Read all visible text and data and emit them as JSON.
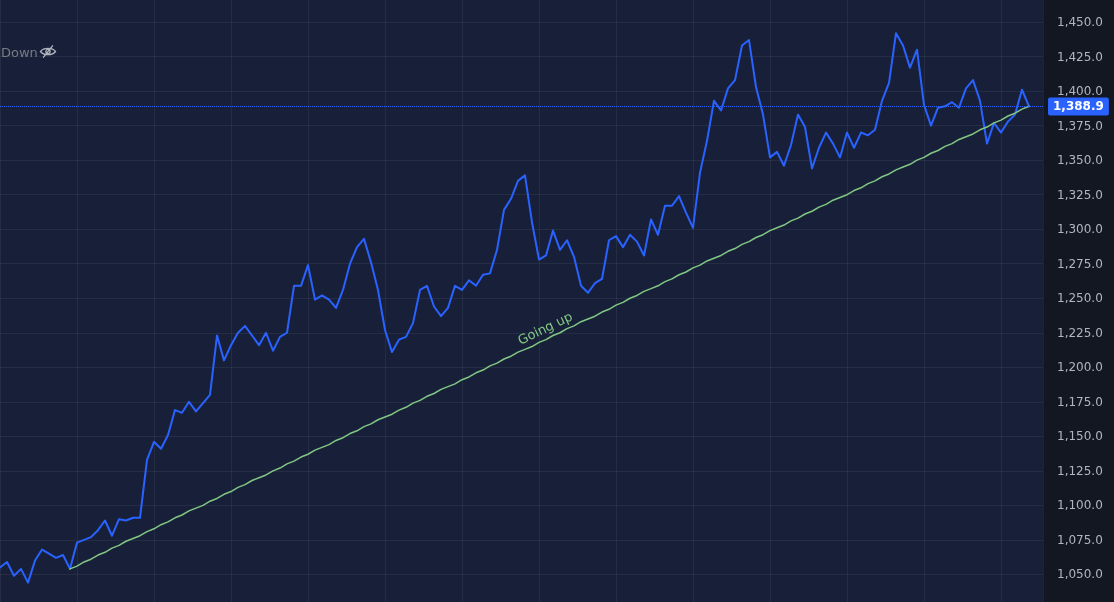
{
  "chart_data": {
    "type": "line",
    "categories": [
      null,
      null,
      null,
      null,
      null,
      null,
      null,
      null,
      null,
      null,
      null,
      null,
      null,
      null,
      null,
      null,
      null,
      null,
      null,
      null,
      null,
      null,
      null,
      null,
      null,
      null,
      null,
      null,
      null,
      null,
      null,
      null,
      null,
      null,
      null,
      null,
      null,
      null,
      null,
      null,
      null,
      null,
      null,
      null,
      null,
      null,
      null,
      null,
      null,
      null,
      null,
      null,
      null,
      null,
      null,
      null,
      null,
      null,
      null,
      null,
      null,
      null,
      null,
      null,
      null,
      null,
      null,
      null,
      null,
      null,
      null,
      null,
      null,
      null,
      null,
      null,
      null,
      null,
      null,
      null,
      null,
      null,
      null,
      null,
      null,
      null,
      null,
      null,
      null,
      null,
      null,
      null,
      null,
      null,
      null,
      null,
      null,
      null,
      null,
      null,
      null,
      null,
      null,
      null,
      null,
      null,
      null,
      null,
      null,
      null,
      null,
      null,
      null,
      null,
      null,
      null,
      null,
      null,
      null,
      null,
      null,
      null,
      null,
      null,
      null,
      null,
      null,
      null,
      null,
      null,
      null,
      null,
      null,
      null,
      null,
      null,
      null,
      null,
      null,
      null,
      null,
      null,
      null,
      null,
      null,
      null,
      null,
      null,
      null,
      null
    ],
    "series": [
      {
        "color": "#2962ff",
        "values": [
          1055,
          1059,
          1049,
          1054,
          1044,
          1060,
          1068,
          1065,
          1062,
          1064,
          1054,
          1073,
          1075,
          1077,
          1082,
          1089,
          1078,
          1090,
          1089,
          1091,
          1091,
          1133,
          1146,
          1141,
          1151,
          1169,
          1167,
          1175,
          1168,
          1174,
          1180,
          1223,
          1205,
          1216,
          1225,
          1230,
          1223,
          1216,
          1225,
          1212,
          1222,
          1225,
          1259,
          1259,
          1274,
          1249,
          1252,
          1249,
          1243,
          1256,
          1275,
          1287,
          1293,
          1276,
          1256,
          1227,
          1211,
          1220,
          1222,
          1232,
          1256,
          1259,
          1244,
          1237,
          1243,
          1259,
          1256,
          1263,
          1259,
          1267,
          1268,
          1285,
          1314,
          1322,
          1335,
          1339,
          1305,
          1278,
          1281,
          1299,
          1285,
          1292,
          1280,
          1259,
          1254,
          1261,
          1264,
          1292,
          1295,
          1287,
          1296,
          1291,
          1281,
          1307,
          1296,
          1317,
          1317,
          1324,
          1312,
          1301,
          1341,
          1364,
          1393,
          1386,
          1402,
          1408,
          1433,
          1437,
          1403,
          1383,
          1352,
          1356,
          1346,
          1361,
          1383,
          1374,
          1344,
          1359,
          1370,
          1362,
          1352,
          1370,
          1359,
          1370,
          1368,
          1372,
          1393,
          1406,
          1442,
          1433,
          1417,
          1430,
          1390,
          1375,
          1388,
          1389,
          1392,
          1388,
          1402,
          1408,
          1393,
          1362,
          1377,
          1370,
          1378,
          1383,
          1401,
          1389,
          null,
          null
        ]
      },
      {
        "name": "Going up",
        "type": "line",
        "color": "#81c784",
        "values": [
          null,
          null,
          null,
          null,
          null,
          null,
          null,
          null,
          null,
          null,
          1054,
          1056,
          1059,
          1061,
          1064,
          1066,
          1069,
          1071,
          1074,
          1076,
          1078,
          1081,
          1083,
          1086,
          1088,
          1091,
          1093,
          1096,
          1098,
          1100,
          1103,
          1105,
          1108,
          1110,
          1113,
          1115,
          1118,
          1120,
          1122,
          1125,
          1127,
          1130,
          1132,
          1135,
          1137,
          1140,
          1142,
          1144,
          1147,
          1149,
          1152,
          1154,
          1157,
          1159,
          1162,
          1164,
          1166,
          1169,
          1171,
          1174,
          1176,
          1179,
          1181,
          1184,
          1186,
          1188,
          1191,
          1193,
          1196,
          1198,
          1201,
          1203,
          1206,
          1208,
          1211,
          1213,
          1215,
          1218,
          1220,
          1223,
          1225,
          1228,
          1230,
          1233,
          1235,
          1237,
          1240,
          1242,
          1245,
          1247,
          1250,
          1252,
          1255,
          1257,
          1259,
          1262,
          1264,
          1267,
          1269,
          1272,
          1274,
          1277,
          1279,
          1281,
          1284,
          1286,
          1289,
          1291,
          1294,
          1296,
          1299,
          1301,
          1303,
          1306,
          1308,
          1311,
          1313,
          1316,
          1318,
          1321,
          1323,
          1325,
          1328,
          1330,
          1333,
          1335,
          1338,
          1340,
          1343,
          1345,
          1347,
          1350,
          1352,
          1355,
          1357,
          1360,
          1362,
          1365,
          1367,
          1369,
          1372,
          1374,
          1377,
          1379,
          1382,
          1384,
          1387,
          1389,
          null,
          null
        ]
      }
    ],
    "ylim": [
      1030,
      1466
    ],
    "yticks": [
      {
        "value": 1050,
        "label": "1,050.0"
      },
      {
        "value": 1075,
        "label": "1,075.0"
      },
      {
        "value": 1100,
        "label": "1,100.0"
      },
      {
        "value": 1125,
        "label": "1,125.0"
      },
      {
        "value": 1150,
        "label": "1,150.0"
      },
      {
        "value": 1175,
        "label": "1,175.0"
      },
      {
        "value": 1200,
        "label": "1,200.0"
      },
      {
        "value": 1225,
        "label": "1,225.0"
      },
      {
        "value": 1250,
        "label": "1,250.0"
      },
      {
        "value": 1275,
        "label": "1,275.0"
      },
      {
        "value": 1300,
        "label": "1,300.0"
      },
      {
        "value": 1325,
        "label": "1,325.0"
      },
      {
        "value": 1350,
        "label": "1,350.0"
      },
      {
        "value": 1375,
        "label": "1,375.0"
      },
      {
        "value": 1400,
        "label": "1,400.0"
      },
      {
        "value": 1425,
        "label": "1,425.0"
      },
      {
        "value": 1450,
        "label": "1,450.0"
      }
    ],
    "tick_labels": "y",
    "grid": true,
    "line_style": "solid",
    "ref_lines": [
      {
        "axis": "y",
        "value": 1388.9,
        "label": "1,388.9",
        "color": "#2962ff",
        "line_style": "dotted"
      }
    ],
    "annotations": [
      "Down"
    ]
  }
}
